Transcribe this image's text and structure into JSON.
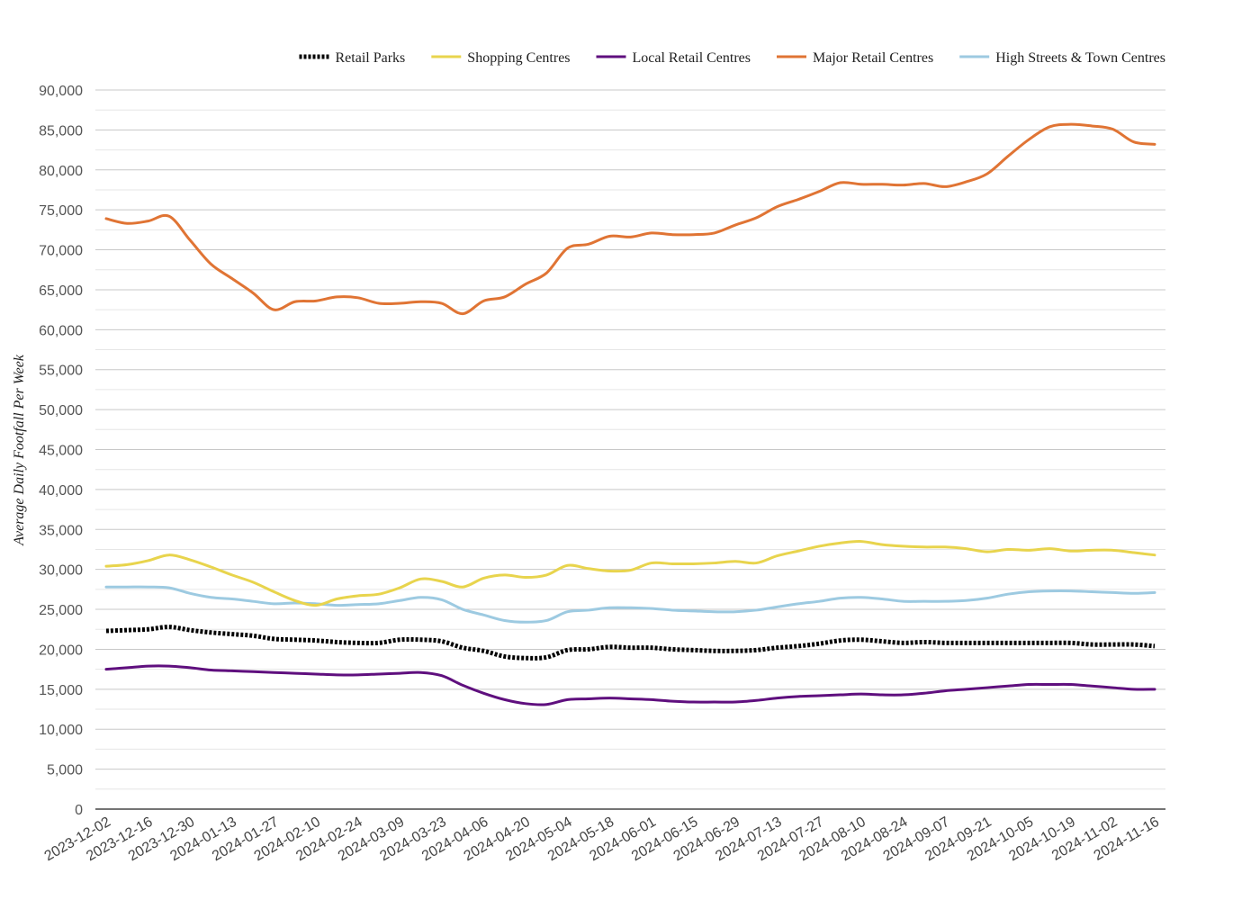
{
  "chart_data": {
    "type": "line",
    "title": "",
    "xlabel": "",
    "ylabel": "Average Daily Footfall Per Week",
    "ylim": [
      0,
      90000
    ],
    "yticks": [
      0,
      5000,
      10000,
      15000,
      20000,
      25000,
      30000,
      35000,
      40000,
      45000,
      50000,
      55000,
      60000,
      65000,
      70000,
      75000,
      80000,
      85000,
      90000
    ],
    "ytick_labels": [
      "0",
      "5,000",
      "10,000",
      "15,000",
      "20,000",
      "25,000",
      "30,000",
      "35,000",
      "40,000",
      "45,000",
      "50,000",
      "55,000",
      "60,000",
      "65,000",
      "70,000",
      "75,000",
      "80,000",
      "85,000",
      "90,000"
    ],
    "grid": true,
    "legend_position": "top",
    "x": [
      "2023-12-02",
      "2023-12-09",
      "2023-12-16",
      "2023-12-23",
      "2023-12-30",
      "2024-01-06",
      "2024-01-13",
      "2024-01-20",
      "2024-01-27",
      "2024-02-03",
      "2024-02-10",
      "2024-02-17",
      "2024-02-24",
      "2024-03-02",
      "2024-03-09",
      "2024-03-16",
      "2024-03-23",
      "2024-03-30",
      "2024-04-06",
      "2024-04-13",
      "2024-04-20",
      "2024-04-27",
      "2024-05-04",
      "2024-05-11",
      "2024-05-18",
      "2024-05-25",
      "2024-06-01",
      "2024-06-08",
      "2024-06-15",
      "2024-06-22",
      "2024-06-29",
      "2024-07-06",
      "2024-07-13",
      "2024-07-20",
      "2024-07-27",
      "2024-08-03",
      "2024-08-10",
      "2024-08-17",
      "2024-08-24",
      "2024-08-31",
      "2024-09-07",
      "2024-09-14",
      "2024-09-21",
      "2024-09-28",
      "2024-10-05",
      "2024-10-12",
      "2024-10-19",
      "2024-10-26",
      "2024-11-02",
      "2024-11-09",
      "2024-11-16"
    ],
    "x_tick_labels": [
      "2023-12-02",
      "2023-12-16",
      "2023-12-30",
      "2024-01-13",
      "2024-01-27",
      "2024-02-10",
      "2024-02-24",
      "2024-03-09",
      "2024-03-23",
      "2024-04-06",
      "2024-04-20",
      "2024-05-04",
      "2024-05-18",
      "2024-06-01",
      "2024-06-15",
      "2024-06-29",
      "2024-07-13",
      "2024-07-27",
      "2024-08-10",
      "2024-08-24",
      "2024-09-07",
      "2024-09-21",
      "2024-10-05",
      "2024-10-19",
      "2024-11-02",
      "2024-11-16"
    ],
    "series": [
      {
        "name": "Retail Parks",
        "color": "#000000",
        "style": "dotted",
        "values": [
          22300,
          22400,
          22500,
          22800,
          22400,
          22100,
          21900,
          21700,
          21300,
          21200,
          21100,
          20900,
          20800,
          20800,
          21200,
          21200,
          21000,
          20200,
          19800,
          19100,
          18900,
          19000,
          19900,
          20000,
          20300,
          20200,
          20200,
          20000,
          19900,
          19800,
          19800,
          19900,
          20200,
          20400,
          20700,
          21100,
          21200,
          21000,
          20800,
          20900,
          20800,
          20800,
          20800,
          20800,
          20800,
          20800,
          20800,
          20600,
          20600,
          20600,
          20400
        ]
      },
      {
        "name": "Shopping Centres",
        "color": "#E8D44D",
        "style": "solid",
        "values": [
          30400,
          30600,
          31100,
          31800,
          31200,
          30300,
          29300,
          28400,
          27200,
          26100,
          25500,
          26300,
          26700,
          26900,
          27700,
          28800,
          28500,
          27800,
          28900,
          29300,
          29000,
          29300,
          30500,
          30100,
          29800,
          29900,
          30800,
          30700,
          30700,
          30800,
          31000,
          30800,
          31700,
          32300,
          32900,
          33300,
          33500,
          33100,
          32900,
          32800,
          32800,
          32600,
          32200,
          32500,
          32400,
          32600,
          32300,
          32400,
          32400,
          32100,
          31800
        ]
      },
      {
        "name": "Local Retail Centres",
        "color": "#5F0F7E",
        "style": "solid",
        "values": [
          17500,
          17700,
          17900,
          17900,
          17700,
          17400,
          17300,
          17200,
          17100,
          17000,
          16900,
          16800,
          16800,
          16900,
          17000,
          17100,
          16700,
          15500,
          14500,
          13700,
          13200,
          13100,
          13700,
          13800,
          13900,
          13800,
          13700,
          13500,
          13400,
          13400,
          13400,
          13600,
          13900,
          14100,
          14200,
          14300,
          14400,
          14300,
          14300,
          14500,
          14800,
          15000,
          15200,
          15400,
          15600,
          15600,
          15600,
          15400,
          15200,
          15000,
          15000
        ]
      },
      {
        "name": "Major Retail Centres",
        "color": "#E07434",
        "style": "solid",
        "values": [
          73900,
          73300,
          73600,
          74200,
          71200,
          68200,
          66400,
          64600,
          62500,
          63500,
          63600,
          64100,
          64000,
          63300,
          63300,
          63500,
          63300,
          62000,
          63600,
          64100,
          65700,
          67100,
          70200,
          70700,
          71700,
          71600,
          72100,
          71900,
          71900,
          72100,
          73100,
          74000,
          75400,
          76300,
          77300,
          78400,
          78200,
          78200,
          78100,
          78300,
          77900,
          78500,
          79500,
          81700,
          83800,
          85400,
          85700,
          85500,
          85100,
          83500,
          83200
        ]
      },
      {
        "name": "High Streets & Town Centres",
        "color": "#9DCAE1",
        "style": "solid",
        "values": [
          27800,
          27800,
          27800,
          27700,
          27000,
          26500,
          26300,
          26000,
          25700,
          25800,
          25700,
          25500,
          25600,
          25700,
          26100,
          26500,
          26200,
          25000,
          24300,
          23600,
          23400,
          23600,
          24700,
          24900,
          25200,
          25200,
          25100,
          24900,
          24800,
          24700,
          24700,
          24900,
          25300,
          25700,
          26000,
          26400,
          26500,
          26300,
          26000,
          26000,
          26000,
          26100,
          26400,
          26900,
          27200,
          27300,
          27300,
          27200,
          27100,
          27000,
          27100
        ]
      }
    ]
  }
}
